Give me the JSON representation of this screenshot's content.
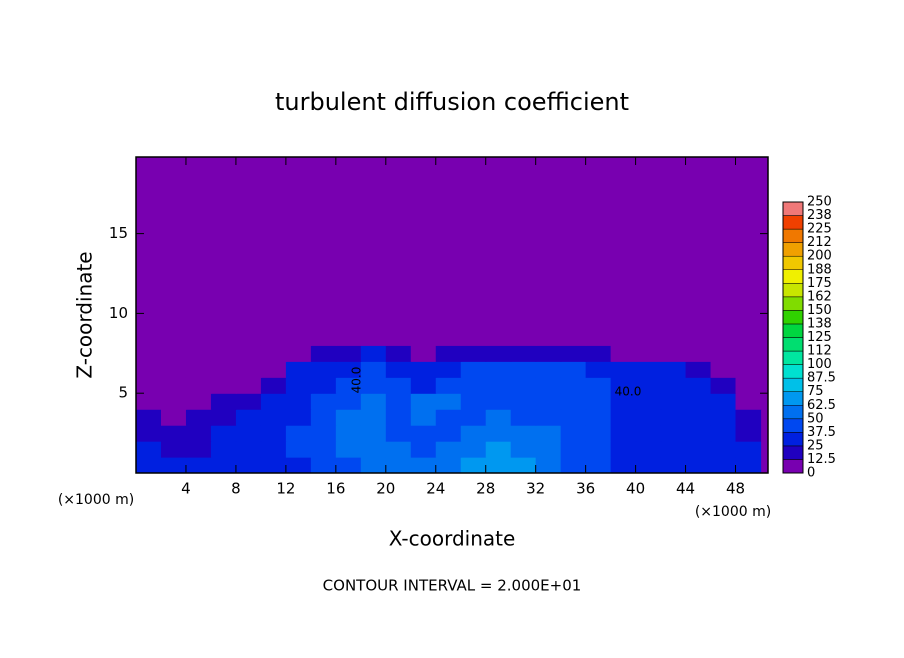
{
  "chart_data": {
    "type": "contour",
    "title": "turbulent diffusion coefficient",
    "x_label": "X-coordinate",
    "y_label": "Z-coordinate",
    "x_unit": "(×1000 m)",
    "y_unit": "(×1000 m)",
    "footer": "CONTOUR INTERVAL = 2.000E+01",
    "annotations": [
      "40.0",
      "40.0"
    ],
    "xlim": [
      0,
      50.6
    ],
    "ylim": [
      0,
      19.8
    ],
    "xticks": [
      4,
      8,
      12,
      16,
      20,
      24,
      28,
      32,
      36,
      40,
      44,
      48
    ],
    "yticks": [
      5,
      10,
      15
    ],
    "field": {
      "x": [
        1,
        3,
        5,
        7,
        9,
        11,
        13,
        15,
        17,
        19,
        21,
        23,
        25,
        27,
        29,
        31,
        33,
        35,
        37,
        39,
        41,
        43,
        45,
        47,
        49
      ],
      "y": [
        0.5,
        1.5,
        2.5,
        3.5,
        4.5,
        5.5,
        6.5,
        7.5,
        8.5
      ],
      "values": [
        [
          30,
          30,
          25,
          30,
          35,
          35,
          35,
          40,
          45,
          50,
          55,
          55,
          60,
          65,
          70,
          65,
          55,
          45,
          40,
          35,
          35,
          30,
          30,
          30,
          30
        ],
        [
          25,
          20,
          20,
          30,
          30,
          35,
          40,
          45,
          50,
          55,
          50,
          45,
          55,
          60,
          65,
          60,
          55,
          45,
          40,
          35,
          35,
          30,
          30,
          30,
          30
        ],
        [
          15,
          15,
          20,
          25,
          30,
          35,
          40,
          40,
          55,
          55,
          45,
          40,
          40,
          50,
          60,
          55,
          55,
          45,
          40,
          35,
          35,
          35,
          30,
          30,
          20
        ],
        [
          15,
          10,
          15,
          20,
          25,
          30,
          35,
          40,
          50,
          55,
          45,
          50,
          40,
          45,
          50,
          45,
          45,
          45,
          40,
          35,
          35,
          35,
          30,
          25,
          15
        ],
        [
          10,
          10,
          10,
          15,
          20,
          30,
          35,
          40,
          45,
          50,
          40,
          50,
          50,
          45,
          40,
          45,
          45,
          40,
          40,
          35,
          35,
          35,
          30,
          25,
          10
        ],
        [
          10,
          5,
          5,
          10,
          10,
          20,
          35,
          35,
          40,
          45,
          40,
          35,
          40,
          45,
          40,
          40,
          40,
          40,
          40,
          35,
          35,
          35,
          25,
          20,
          10
        ],
        [
          5,
          5,
          0,
          0,
          0,
          10,
          25,
          35,
          35,
          40,
          35,
          30,
          35,
          40,
          40,
          40,
          40,
          40,
          35,
          35,
          30,
          25,
          15,
          10,
          5
        ],
        [
          0,
          0,
          0,
          0,
          0,
          0,
          5,
          20,
          20,
          25,
          15,
          10,
          15,
          20,
          20,
          20,
          20,
          20,
          15,
          10,
          5,
          0,
          0,
          0,
          0
        ],
        [
          0,
          0,
          0,
          0,
          0,
          0,
          0,
          0,
          5,
          8,
          0,
          0,
          0,
          0,
          0,
          0,
          0,
          0,
          0,
          0,
          0,
          0,
          0,
          0,
          0
        ]
      ]
    },
    "colorbar": {
      "levels": [
        0,
        12.5,
        25,
        37.5,
        50,
        62.5,
        75,
        87.5,
        100,
        {
          "value": 112.5,
          "label": "112"
        },
        125,
        {
          "value": 137.5,
          "label": "138"
        },
        150,
        {
          "value": 162.5,
          "label": "162"
        },
        175,
        {
          "value": 187.5,
          "label": "188"
        },
        200,
        {
          "value": 212.5,
          "label": "212"
        },
        225,
        {
          "value": 237.5,
          "label": "238"
        },
        250
      ],
      "colors": [
        "#7800b0",
        "#2000c0",
        "#0020e0",
        "#0048f0",
        "#0070f0",
        "#0098f0",
        "#00c0e8",
        "#00e0d0",
        "#00e6a0",
        "#00de70",
        "#00d640",
        "#30d200",
        "#80dc00",
        "#c8e600",
        "#f0f000",
        "#f0c800",
        "#f0a000",
        "#f07800",
        "#f04000",
        "#f07878"
      ]
    }
  }
}
